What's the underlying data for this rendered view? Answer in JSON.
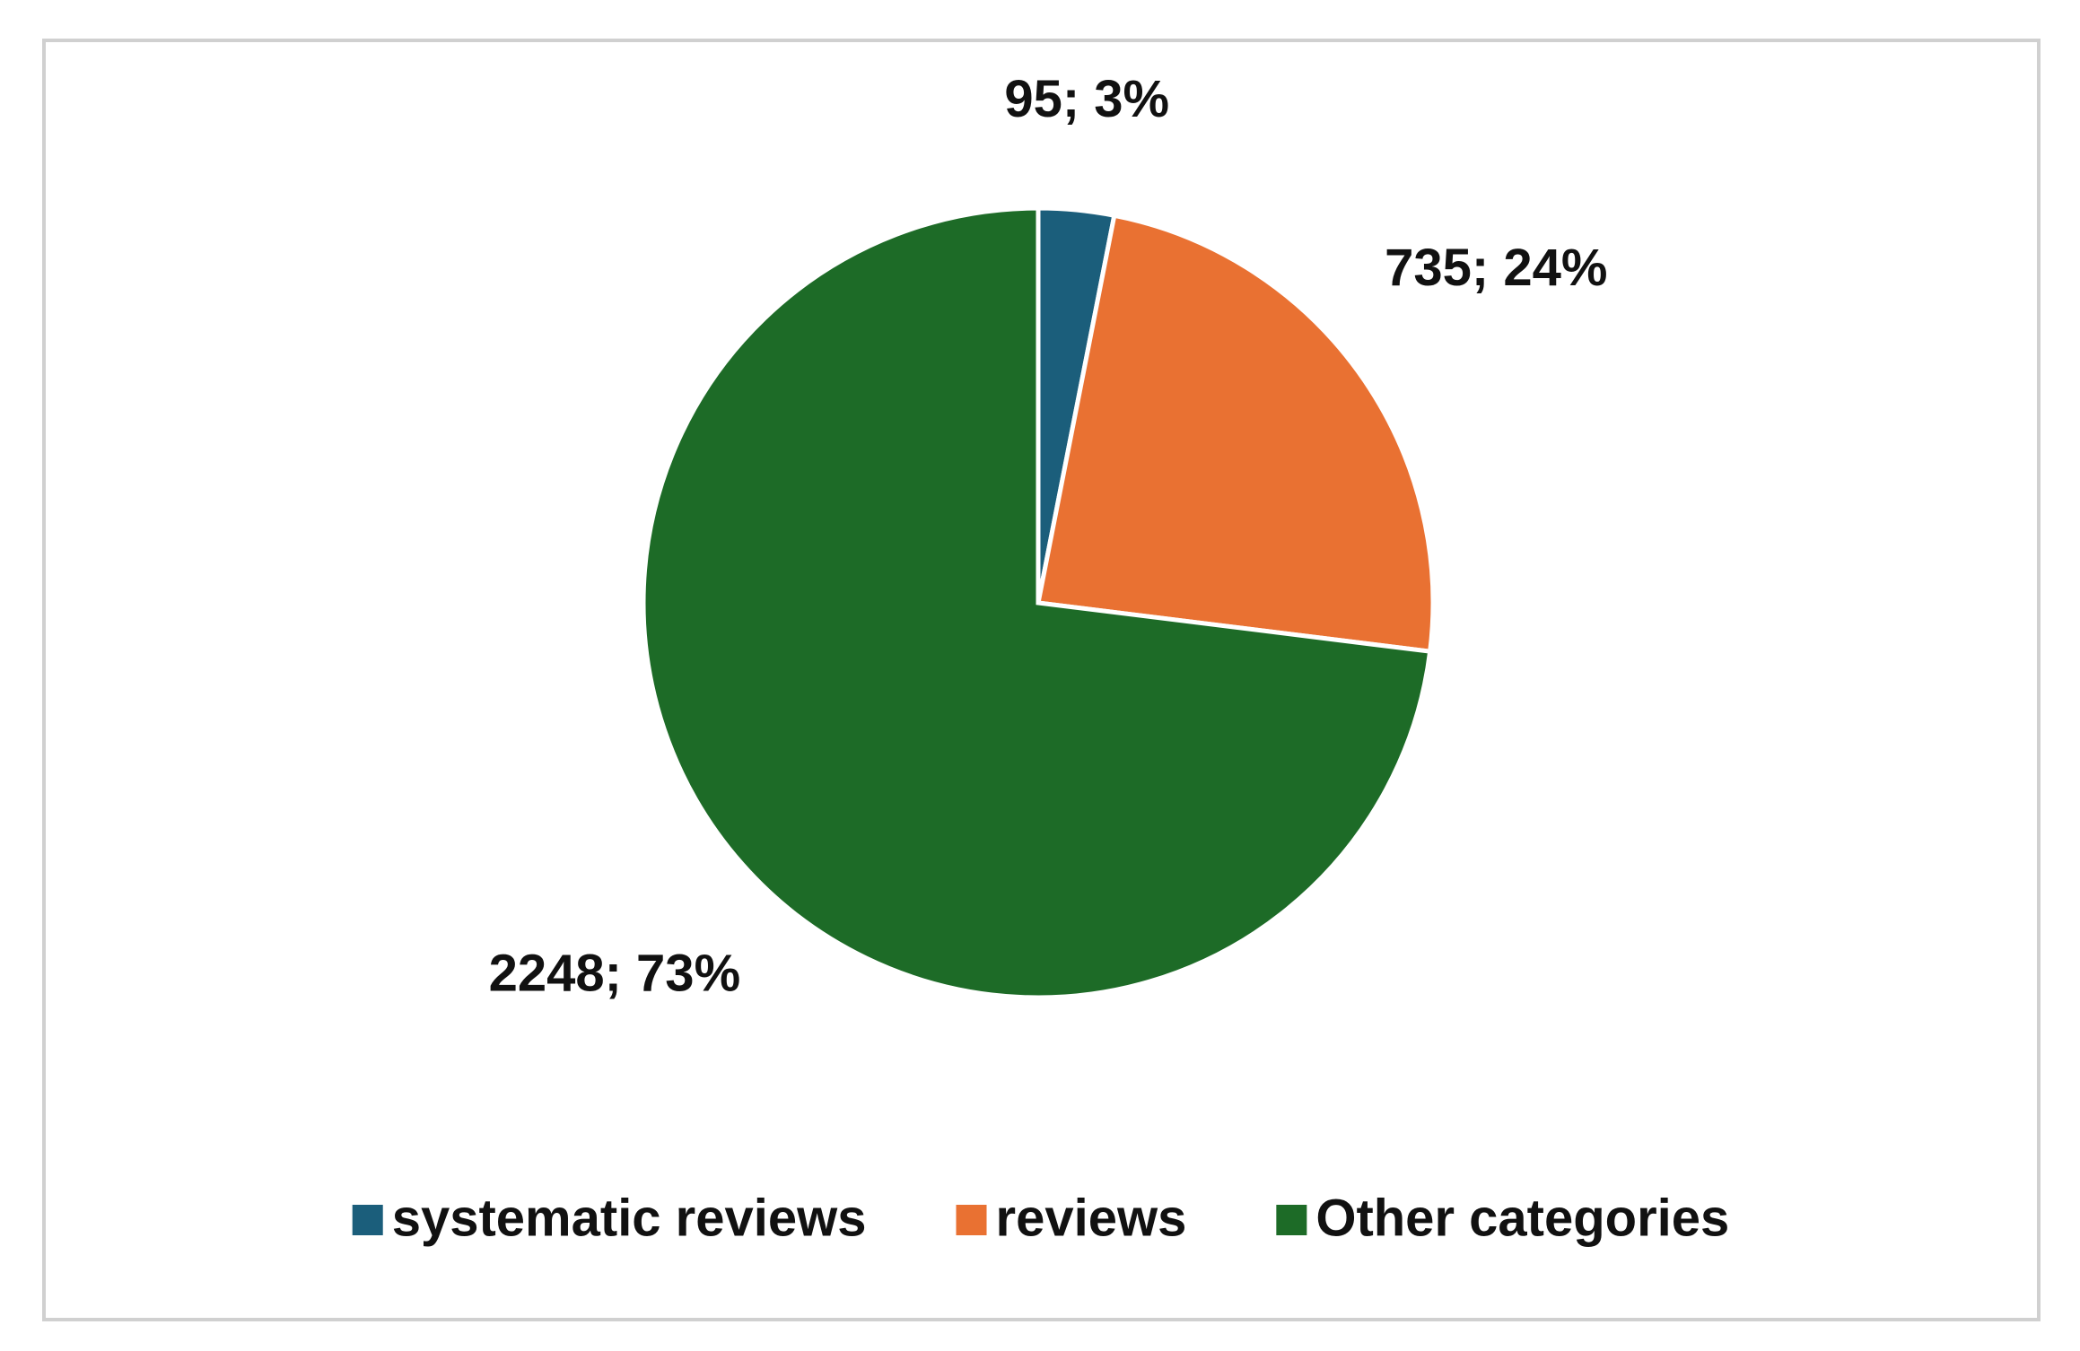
{
  "chart_data": {
    "type": "pie",
    "categories": [
      "systematic reviews",
      "reviews",
      "Other categories"
    ],
    "values": [
      95,
      735,
      2248
    ],
    "value_labels": [
      "95; 3%",
      "735; 24%",
      "2248; 73%"
    ],
    "colors": [
      "#1b5e7b",
      "#e97132",
      "#1d6b27"
    ],
    "legend": "bottom"
  }
}
